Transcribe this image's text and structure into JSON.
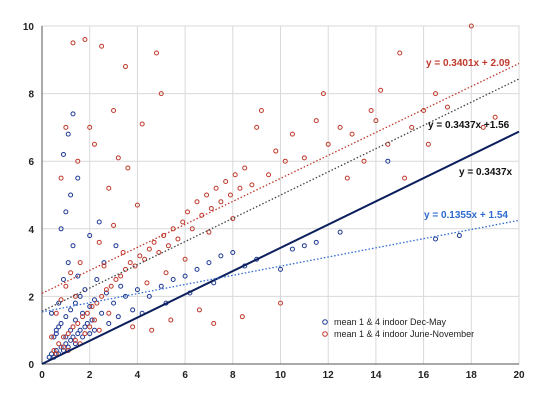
{
  "chart_data": {
    "type": "scatter",
    "xlim": [
      0,
      20
    ],
    "ylim": [
      0,
      10
    ],
    "x_ticks": [
      "0",
      "2",
      "4",
      "6",
      "8",
      "10",
      "12",
      "14",
      "16",
      "18",
      "20"
    ],
    "y_ticks": [
      "0",
      "2",
      "4",
      "6",
      "8",
      "10"
    ],
    "grid": true,
    "legend_position": "bottom-right",
    "series": [
      {
        "name": "mean 1 & 4 indoor Dec-May",
        "color": "#1f3a93",
        "marker": "open-circle",
        "points": [
          [
            0.3,
            0.2
          ],
          [
            0.4,
            0.3
          ],
          [
            0.5,
            0.2
          ],
          [
            0.6,
            0.4
          ],
          [
            0.7,
            0.3
          ],
          [
            0.8,
            0.5
          ],
          [
            0.9,
            0.4
          ],
          [
            1.0,
            0.6
          ],
          [
            1.1,
            0.5
          ],
          [
            1.2,
            0.7
          ],
          [
            1.3,
            0.8
          ],
          [
            1.4,
            0.6
          ],
          [
            1.5,
            0.9
          ],
          [
            1.6,
            1.0
          ],
          [
            1.7,
            0.8
          ],
          [
            1.8,
            1.1
          ],
          [
            1.9,
            1.2
          ],
          [
            2.0,
            0.9
          ],
          [
            2.1,
            1.3
          ],
          [
            2.2,
            1.0
          ],
          [
            0.5,
            0.8
          ],
          [
            0.6,
            1.0
          ],
          [
            0.8,
            1.2
          ],
          [
            1.0,
            1.4
          ],
          [
            1.2,
            1.6
          ],
          [
            1.4,
            1.8
          ],
          [
            1.6,
            2.0
          ],
          [
            1.8,
            2.2
          ],
          [
            0.4,
            1.5
          ],
          [
            0.7,
            1.8
          ],
          [
            0.9,
            2.5
          ],
          [
            1.1,
            3.0
          ],
          [
            1.3,
            3.5
          ],
          [
            0.8,
            4.0
          ],
          [
            1.0,
            4.5
          ],
          [
            1.2,
            5.0
          ],
          [
            1.5,
            5.5
          ],
          [
            0.9,
            6.2
          ],
          [
            1.1,
            6.8
          ],
          [
            1.3,
            7.4
          ],
          [
            2.5,
            1.5
          ],
          [
            3.0,
            1.8
          ],
          [
            3.5,
            2.0
          ],
          [
            4.0,
            2.2
          ],
          [
            4.5,
            2.0
          ],
          [
            5.0,
            2.3
          ],
          [
            2.8,
            1.2
          ],
          [
            3.2,
            1.4
          ],
          [
            3.8,
            1.6
          ],
          [
            4.2,
            1.5
          ],
          [
            5.5,
            2.5
          ],
          [
            6.0,
            2.6
          ],
          [
            6.5,
            2.8
          ],
          [
            7.0,
            3.0
          ],
          [
            7.5,
            3.2
          ],
          [
            8.0,
            3.3
          ],
          [
            5.2,
            1.8
          ],
          [
            6.2,
            2.1
          ],
          [
            7.2,
            2.4
          ],
          [
            8.5,
            2.9
          ],
          [
            10.0,
            2.8
          ],
          [
            11.5,
            3.6
          ],
          [
            14.5,
            6.0
          ],
          [
            17.5,
            3.8
          ],
          [
            2.3,
            2.5
          ],
          [
            2.6,
            3.0
          ],
          [
            3.1,
            3.5
          ],
          [
            1.5,
            2.6
          ],
          [
            2.0,
            3.8
          ],
          [
            2.4,
            4.2
          ],
          [
            0.6,
            0.9
          ],
          [
            0.7,
            1.1
          ],
          [
            1.0,
            0.8
          ],
          [
            1.2,
            1.0
          ],
          [
            1.4,
            1.3
          ],
          [
            1.7,
            1.5
          ],
          [
            2.0,
            1.7
          ],
          [
            2.2,
            1.9
          ],
          [
            2.7,
            2.1
          ],
          [
            3.3,
            2.3
          ],
          [
            9.0,
            3.1
          ],
          [
            10.5,
            3.4
          ],
          [
            11.0,
            3.5
          ],
          [
            12.5,
            3.9
          ],
          [
            16.5,
            3.7
          ]
        ]
      },
      {
        "name": "mean 1 & 4 indoor June-November",
        "color": "#c0392b",
        "marker": "open-circle",
        "points": [
          [
            0.5,
            0.4
          ],
          [
            0.7,
            0.6
          ],
          [
            0.9,
            0.8
          ],
          [
            1.1,
            0.9
          ],
          [
            1.3,
            1.1
          ],
          [
            1.5,
            1.2
          ],
          [
            1.7,
            1.4
          ],
          [
            1.9,
            1.5
          ],
          [
            2.1,
            1.7
          ],
          [
            2.3,
            1.8
          ],
          [
            2.5,
            2.0
          ],
          [
            2.7,
            2.2
          ],
          [
            2.9,
            2.3
          ],
          [
            3.1,
            2.5
          ],
          [
            3.3,
            2.6
          ],
          [
            3.5,
            2.8
          ],
          [
            3.7,
            3.0
          ],
          [
            3.9,
            2.9
          ],
          [
            4.1,
            3.2
          ],
          [
            4.3,
            3.1
          ],
          [
            4.5,
            3.4
          ],
          [
            4.7,
            3.6
          ],
          [
            4.9,
            3.3
          ],
          [
            5.1,
            3.8
          ],
          [
            5.3,
            3.5
          ],
          [
            5.5,
            4.0
          ],
          [
            5.7,
            3.7
          ],
          [
            5.9,
            4.2
          ],
          [
            6.1,
            4.5
          ],
          [
            6.3,
            4.0
          ],
          [
            6.5,
            4.8
          ],
          [
            6.7,
            4.4
          ],
          [
            6.9,
            5.0
          ],
          [
            7.1,
            4.6
          ],
          [
            7.3,
            5.2
          ],
          [
            7.5,
            4.8
          ],
          [
            7.7,
            5.4
          ],
          [
            7.9,
            5.0
          ],
          [
            8.1,
            5.6
          ],
          [
            8.3,
            5.2
          ],
          [
            8.5,
            5.8
          ],
          [
            8.8,
            5.3
          ],
          [
            9.0,
            7.0
          ],
          [
            9.2,
            7.5
          ],
          [
            9.5,
            5.6
          ],
          [
            9.8,
            6.3
          ],
          [
            10.2,
            6.0
          ],
          [
            10.5,
            6.8
          ],
          [
            11.0,
            6.1
          ],
          [
            11.5,
            7.2
          ],
          [
            12.0,
            6.5
          ],
          [
            12.5,
            7.0
          ],
          [
            13.0,
            6.8
          ],
          [
            13.5,
            6.0
          ],
          [
            14.0,
            7.2
          ],
          [
            14.5,
            6.5
          ],
          [
            15.0,
            9.2
          ],
          [
            15.5,
            7.0
          ],
          [
            16.0,
            7.5
          ],
          [
            16.5,
            8.0
          ],
          [
            17.0,
            7.6
          ],
          [
            18.0,
            10.0
          ],
          [
            18.5,
            7.0
          ],
          [
            19.0,
            7.3
          ],
          [
            14.2,
            8.1
          ],
          [
            11.8,
            8.0
          ],
          [
            12.8,
            5.5
          ],
          [
            13.8,
            7.5
          ],
          [
            15.2,
            5.5
          ],
          [
            16.2,
            6.5
          ],
          [
            1.3,
            9.5
          ],
          [
            1.8,
            9.6
          ],
          [
            2.5,
            9.4
          ],
          [
            4.8,
            9.2
          ],
          [
            3.5,
            8.8
          ],
          [
            3.0,
            7.5
          ],
          [
            2.0,
            7.0
          ],
          [
            1.0,
            7.0
          ],
          [
            0.8,
            5.5
          ],
          [
            1.5,
            6.0
          ],
          [
            2.2,
            6.5
          ],
          [
            3.2,
            6.1
          ],
          [
            4.2,
            7.1
          ],
          [
            5.0,
            8.0
          ],
          [
            2.8,
            5.2
          ],
          [
            3.6,
            5.8
          ],
          [
            4.0,
            4.7
          ],
          [
            3.0,
            4.1
          ],
          [
            2.4,
            3.6
          ],
          [
            1.6,
            3.0
          ],
          [
            0.6,
            1.5
          ],
          [
            0.8,
            1.9
          ],
          [
            1.0,
            2.3
          ],
          [
            1.2,
            2.7
          ],
          [
            1.4,
            2.0
          ],
          [
            2.6,
            2.9
          ],
          [
            3.4,
            3.3
          ],
          [
            4.4,
            2.4
          ],
          [
            5.2,
            2.7
          ],
          [
            6.0,
            3.1
          ],
          [
            7.0,
            3.9
          ],
          [
            8.0,
            4.3
          ],
          [
            6.6,
            1.6
          ],
          [
            7.2,
            1.2
          ],
          [
            8.4,
            1.4
          ],
          [
            10.0,
            1.8
          ],
          [
            4.6,
            1.0
          ],
          [
            5.4,
            1.3
          ],
          [
            3.8,
            1.1
          ],
          [
            2.8,
            1.5
          ],
          [
            0.4,
            0.8
          ],
          [
            0.6,
            0.3
          ],
          [
            0.9,
            0.5
          ],
          [
            1.1,
            0.4
          ],
          [
            1.4,
            0.7
          ],
          [
            1.6,
            0.6
          ],
          [
            1.8,
            0.9
          ],
          [
            2.0,
            1.1
          ],
          [
            2.2,
            1.3
          ],
          [
            2.4,
            1.0
          ]
        ]
      }
    ],
    "fit_lines": [
      {
        "label": "y = 0.3401x + 2.09",
        "slope": 0.3401,
        "intercept": 2.09,
        "color": "#c0392b",
        "style": "dotted"
      },
      {
        "label": "y = 0.3437x +1.56",
        "slope": 0.3437,
        "intercept": 1.56,
        "color": "#444444",
        "style": "dotted"
      },
      {
        "label": "y = 0.3437x",
        "slope": 0.3437,
        "intercept": 0,
        "color": "#0b1f5c",
        "style": "solid"
      },
      {
        "label": "y = 0.1355x + 1.54",
        "slope": 0.1355,
        "intercept": 1.54,
        "color": "#2e6bd1",
        "style": "dotted"
      }
    ]
  }
}
